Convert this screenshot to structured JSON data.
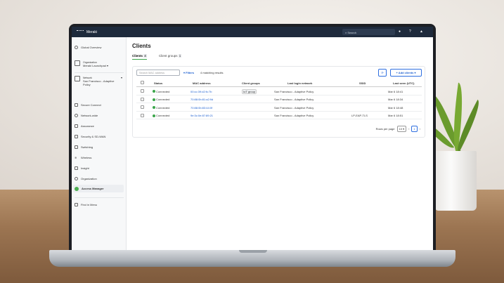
{
  "topbar": {
    "brand": "Meraki",
    "search_placeholder": "Search"
  },
  "sidebar": {
    "items": [
      {
        "label": "Global Overview",
        "icon": "globe-icon"
      },
      {
        "label": "Organization",
        "sub": "Meraki Launchpad",
        "icon": "org-icon"
      },
      {
        "label": "Network",
        "sub": "San Francisco - Adaptive Policy",
        "icon": "network-icon"
      },
      {
        "label": "Secure Connect",
        "icon": "shield-icon"
      },
      {
        "label": "Network-wide",
        "icon": "network-wide-icon"
      },
      {
        "label": "Assurance",
        "icon": "assurance-icon"
      },
      {
        "label": "Security & SD-WAN",
        "icon": "security-icon"
      },
      {
        "label": "Switching",
        "icon": "switch-icon"
      },
      {
        "label": "Wireless",
        "icon": "wifi-icon"
      },
      {
        "label": "Insight",
        "icon": "chart-icon"
      },
      {
        "label": "Organization",
        "icon": "person-icon"
      },
      {
        "label": "Access Manager",
        "icon": "access-manager-icon",
        "active": true
      },
      {
        "label": "Find in Menu",
        "icon": "find-icon"
      }
    ]
  },
  "page": {
    "title": "Clients",
    "tabs": [
      {
        "label": "Clients",
        "count": "4"
      },
      {
        "label": "Client groups",
        "count": "1"
      }
    ]
  },
  "toolbar": {
    "search_placeholder": "Search MAC address",
    "filters": "Filters",
    "results": "4 matching results",
    "add_clients": "+ Add clients"
  },
  "table": {
    "headers": [
      "Status",
      "MAC address",
      "Client groups",
      "Last login network",
      "SSID",
      "Last seen (UTC)"
    ],
    "rows": [
      {
        "status": "Connected",
        "mac": "00:cc:39:d2:fc:7b",
        "group": "IoT group",
        "network": "San Francisco - Adaptive Policy",
        "ssid": "",
        "seen": "Mar 6 18:41"
      },
      {
        "status": "Connected",
        "mac": "70:88:0b:81:a2:9d",
        "group": "",
        "network": "San Francisco - Adaptive Policy",
        "ssid": "",
        "seen": "Mar 6 18:34"
      },
      {
        "status": "Connected",
        "mac": "70:88:0b:83:44:0f",
        "group": "",
        "network": "San Francisco - Adaptive Policy",
        "ssid": "",
        "seen": "Mar 6 18:48"
      },
      {
        "status": "Connected",
        "mac": "9e:3c:0e:87:89:21",
        "group": "",
        "network": "San Francisco - Adaptive Policy",
        "ssid": "LP-EAP-TLS",
        "seen": "Mar 6 18:51"
      }
    ]
  },
  "pagination": {
    "rows_per_page_label": "Rows per page",
    "rows_per_page": "10",
    "page": "1"
  },
  "colors": {
    "topbar": "#1e2a3c",
    "accent": "#1c5fd0",
    "connected": "#3aa54a",
    "active_tab": "#3aa54a"
  }
}
